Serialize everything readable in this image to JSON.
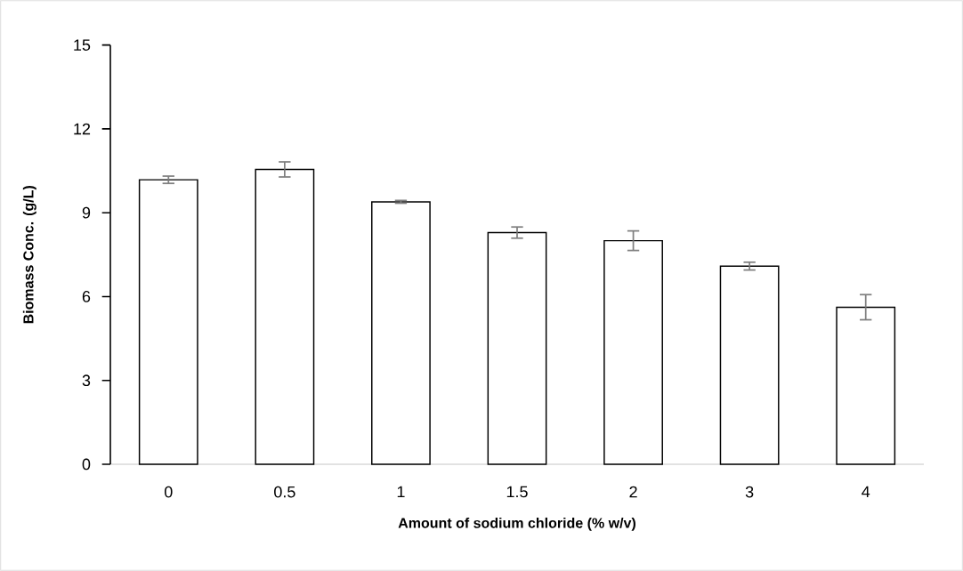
{
  "chart_data": {
    "type": "bar",
    "xlabel": "Amount of sodium chloride  (% w/v)",
    "ylabel": "Biomass Conc. (g/L)",
    "categories": [
      "0",
      "0.5",
      "1",
      "1.5",
      "2",
      "3",
      "4"
    ],
    "values": [
      10.18,
      10.55,
      9.39,
      8.29,
      8.0,
      7.09,
      5.62
    ],
    "errors": [
      0.13,
      0.27,
      0.05,
      0.2,
      0.35,
      0.14,
      0.45
    ],
    "color": "#ffffff",
    "ylim": [
      0,
      15
    ],
    "yticks": [
      0,
      3,
      6,
      9,
      12,
      15
    ],
    "grid": false
  }
}
